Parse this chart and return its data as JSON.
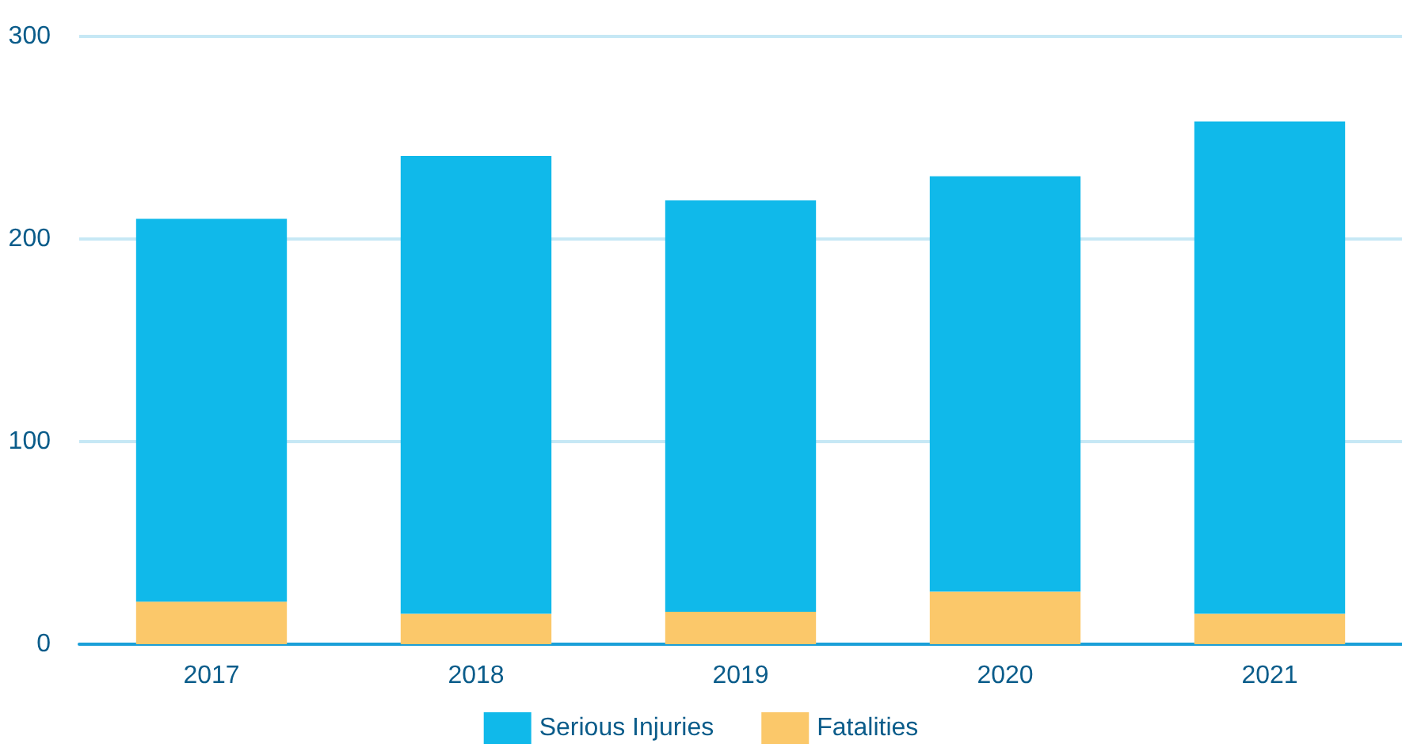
{
  "chart_data": {
    "type": "bar",
    "categories": [
      "2017",
      "2018",
      "2019",
      "2020",
      "2021"
    ],
    "stacked": true,
    "series": [
      {
        "name": "Fatalities",
        "color": "#fbc86a",
        "values": [
          21,
          15,
          16,
          26,
          15
        ]
      },
      {
        "name": "Serious Injuries",
        "color": "#10b9ea",
        "values": [
          189,
          226,
          203,
          205,
          243
        ]
      }
    ],
    "ylim": [
      0,
      300
    ],
    "yticks": [
      0,
      100,
      200,
      300
    ],
    "grid": "y",
    "legend": "bottom"
  }
}
